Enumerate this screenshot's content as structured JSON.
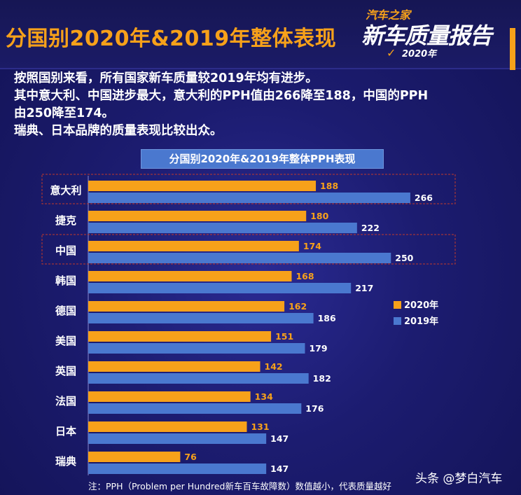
{
  "header": {
    "title": "分国别2020年&2019年整体表现",
    "logo_line1": "汽车之家",
    "logo_line2": "新车质量报告",
    "logo_year": "2020年"
  },
  "description": [
    "按照国别来看，所有国家新车质量较2019年均有进步。",
    "其中意大利、中国进步最大，意大利的PPH值由266降至188，中国的PPH",
    "由250降至174。",
    "瑞典、日本品牌的质量表现比较出众。"
  ],
  "chart_data": {
    "type": "bar",
    "orientation": "horizontal",
    "title": "分国别2020年&2019年整体PPH表现",
    "categories": [
      "意大利",
      "捷克",
      "中国",
      "韩国",
      "德国",
      "美国",
      "英国",
      "法国",
      "日本",
      "瑞典"
    ],
    "series": [
      {
        "name": "2020年",
        "color": "#f7a11a",
        "values": [
          188,
          180,
          174,
          168,
          162,
          151,
          142,
          134,
          131,
          76
        ]
      },
      {
        "name": "2019年",
        "color": "#4a78cf",
        "values": [
          266,
          222,
          250,
          217,
          186,
          179,
          182,
          176,
          147,
          147
        ]
      }
    ],
    "highlighted_categories": [
      "意大利",
      "中国"
    ],
    "highlight_color": "#c0392b",
    "legend_position": "right",
    "grid": false
  },
  "footnote": "注：PPH（Problem per Hundred新车百车故障数）数值越小，代表质量越好",
  "watermark": "头条 @梦白汽车"
}
